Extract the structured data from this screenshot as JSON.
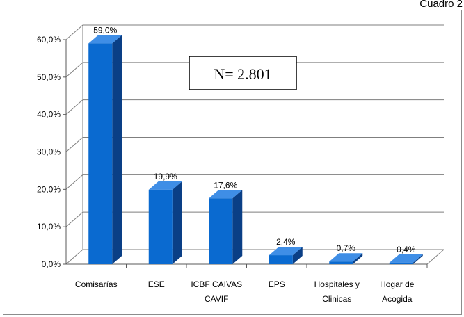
{
  "corner_text": "Cuadro 2",
  "chart_data": {
    "type": "bar",
    "categories": [
      "Comisarías",
      "ESE",
      "ICBF CAIVAS CAVIF",
      "EPS",
      "Hospitales y Clinicas",
      "Hogar de Acogida"
    ],
    "category_lines": [
      [
        "Comisarías"
      ],
      [
        "ESE"
      ],
      [
        "ICBF CAIVAS",
        "CAVIF"
      ],
      [
        "EPS"
      ],
      [
        "Hospitales y",
        "Clinicas"
      ],
      [
        "Hogar de",
        "Acogida"
      ]
    ],
    "values": [
      59.0,
      19.9,
      17.6,
      2.4,
      0.7,
      0.4
    ],
    "value_labels": [
      "59,0%",
      "19,9%",
      "17,6%",
      "2,4%",
      "0,7%",
      "0,4%"
    ],
    "ylim": [
      0,
      60
    ],
    "yticks": [
      0,
      10,
      20,
      30,
      40,
      50,
      60
    ],
    "ytick_labels": [
      "0,0%",
      "10,0%",
      "20,0%",
      "30,0%",
      "40,0%",
      "50,0%",
      "60,0%"
    ],
    "annotation": "N= 2.801",
    "grid": true,
    "bar_style": "3d",
    "colors": {
      "bar_front": "#0a6ad0",
      "bar_top": "#3f8ee6",
      "bar_side": "#0a3f86",
      "gridline": "#7f7f7f",
      "axis": "#595959"
    }
  }
}
